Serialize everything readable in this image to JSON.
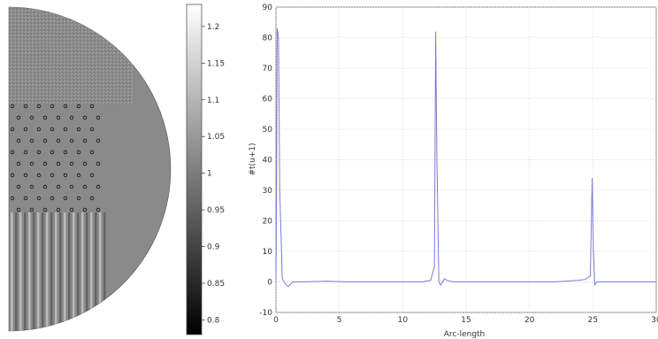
{
  "chart_data": [
    {
      "type": "heatmap",
      "description_free": true,
      "colormap": "gray",
      "colorbar_ticks": [
        "1.2",
        "1.15",
        "1.1",
        "1.05",
        "1",
        "0.95",
        "0.9",
        "0.85",
        "0.8"
      ],
      "colorbar_range": [
        0.78,
        1.23
      ],
      "colors": {
        "background_field": "#8a8a8a"
      }
    },
    {
      "type": "line",
      "xlabel": "Arc-length",
      "ylabel": "#t(u+1)",
      "xlim": [
        0,
        30
      ],
      "ylim": [
        -10,
        90
      ],
      "x_ticks": [
        "0",
        "5",
        "10",
        "15",
        "20",
        "25",
        "30"
      ],
      "y_ticks": [
        "90",
        "80",
        "70",
        "60",
        "50",
        "40",
        "30",
        "20",
        "10",
        "0",
        "-10"
      ],
      "grid": true,
      "colors": {
        "line": "#7b7bd6"
      },
      "series": [
        {
          "x": [
            0,
            0.05,
            0.1,
            0.2,
            0.3,
            0.5,
            0.8,
            1.0,
            1.3,
            2,
            4,
            6,
            8,
            10,
            11.5,
            12.2,
            12.5,
            12.6,
            12.7,
            12.85,
            13.0,
            13.3,
            13.5,
            14,
            15,
            18,
            20,
            22,
            23.8,
            24.4,
            24.8,
            24.95,
            25.05,
            25.15,
            25.3,
            25.6,
            26,
            28,
            30
          ],
          "y": [
            0,
            30,
            83,
            80,
            30,
            1,
            -1,
            -1.5,
            0,
            0,
            0.2,
            0,
            0,
            0,
            0,
            0.5,
            5,
            82,
            40,
            0,
            -1,
            1,
            0.5,
            0,
            0,
            0,
            0,
            0,
            0.5,
            0.8,
            2,
            34,
            10,
            -1,
            0,
            0,
            0,
            0,
            0
          ]
        }
      ]
    }
  ]
}
